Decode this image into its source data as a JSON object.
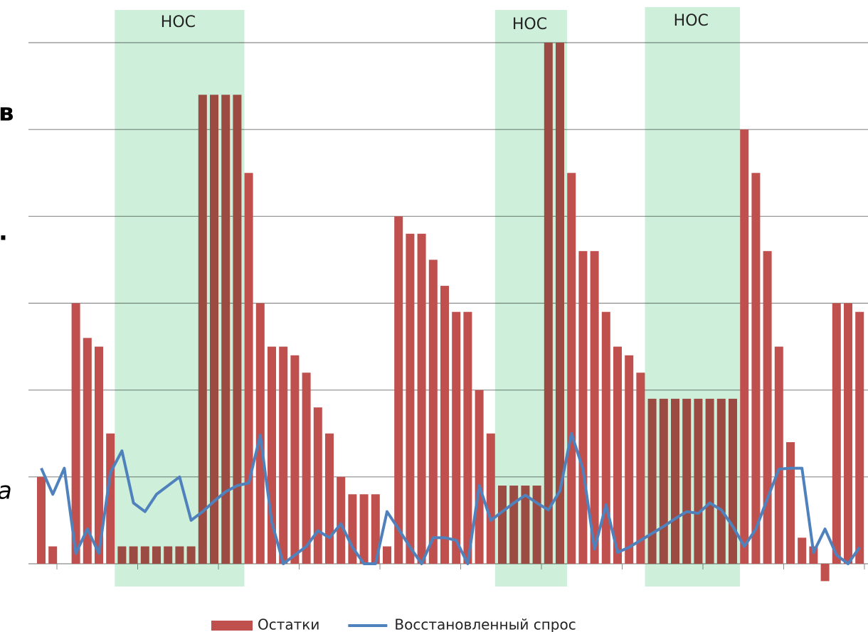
{
  "chart_data": {
    "type": "bar_line",
    "categories": [
      null,
      null,
      null,
      null,
      null,
      null,
      null,
      null,
      null,
      null,
      null,
      null,
      null,
      null,
      null,
      null,
      null,
      null,
      null,
      null,
      null,
      null,
      null,
      null,
      null,
      null,
      null,
      null,
      null,
      null,
      null,
      null,
      null,
      null,
      null,
      null,
      null,
      null,
      null,
      null,
      null,
      null,
      null,
      null,
      null,
      null,
      null,
      null,
      null,
      null,
      null,
      null,
      null,
      null,
      null,
      null,
      null,
      null,
      null,
      null,
      null,
      null,
      null,
      null,
      null,
      null,
      null,
      null,
      null,
      null,
      null,
      null
    ],
    "series": [
      {
        "name": "Остатки",
        "kind": "bar",
        "color": "#c0504d",
        "values": [
          1.0,
          0.2,
          0,
          3.0,
          2.6,
          2.5,
          1.5,
          0.2,
          0.2,
          0.2,
          0.2,
          0.2,
          0.2,
          0.2,
          5.4,
          5.4,
          5.4,
          5.4,
          4.5,
          3.0,
          2.5,
          2.5,
          2.4,
          2.2,
          1.8,
          1.5,
          1.0,
          0.8,
          0.8,
          0.8,
          0.2,
          4.0,
          3.8,
          3.8,
          3.5,
          3.2,
          2.9,
          2.9,
          2.0,
          1.5,
          0.9,
          0.9,
          0.9,
          0.9,
          6.0,
          6.0,
          4.5,
          3.6,
          3.6,
          2.9,
          2.5,
          2.4,
          2.2,
          1.9,
          1.9,
          1.9,
          1.9,
          1.9,
          1.9,
          1.9,
          1.9,
          5.0,
          4.5,
          3.6,
          2.5,
          1.4,
          0.3,
          0.2,
          -0.2,
          3.0,
          3.0,
          2.9
        ]
      },
      {
        "name": "Восстановленный спрос",
        "kind": "line",
        "color": "#4f81bd",
        "values": [
          1.1,
          0.8,
          1.1,
          0.12,
          0.4,
          0.12,
          1.05,
          1.3,
          0.7,
          0.6,
          0.8,
          0.9,
          1.0,
          0.5,
          0.6,
          0.72,
          0.83,
          0.9,
          0.93,
          1.48,
          0.48,
          0,
          0.1,
          0.2,
          0.38,
          0.3,
          0.46,
          0.19,
          0,
          0,
          0.6,
          0.4,
          0.19,
          0,
          0.3,
          0.3,
          0.27,
          0,
          0.9,
          0.5,
          0.6,
          0.7,
          0.79,
          0.7,
          0.62,
          0.84,
          1.5,
          1.09,
          0.17,
          0.68,
          0.13,
          0.19,
          0.27,
          0.35,
          0.43,
          0.52,
          0.6,
          0.58,
          0.7,
          0.62,
          0.43,
          0.2,
          0.4,
          0.75,
          1.09,
          1.1,
          1.1,
          0.13,
          0.4,
          0.1,
          0,
          0.19
        ]
      }
    ],
    "regions": [
      {
        "label": "НОС",
        "start": 7,
        "end": 17
      },
      {
        "label": "НОС",
        "start": 40,
        "end": 45
      },
      {
        "label": "НОС",
        "start": 53,
        "end": 60
      }
    ],
    "fragments": [
      "в",
      ".",
      "а"
    ],
    "ylim": [
      0,
      6
    ],
    "yticks": [
      0,
      1,
      2,
      3,
      4,
      5,
      6
    ],
    "grid": true
  }
}
